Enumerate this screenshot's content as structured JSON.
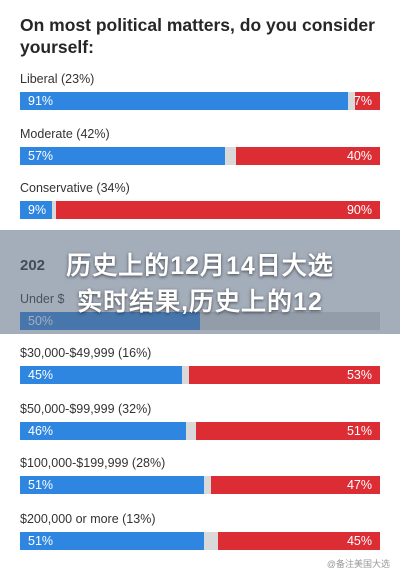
{
  "chart_data": [
    {
      "type": "bar",
      "title": "On most political matters, do you consider yourself:",
      "categories": [
        "Liberal (23%)",
        "Moderate (42%)",
        "Conservative (34%)"
      ],
      "series": [
        {
          "values": [
            91,
            57,
            9
          ],
          "labels": [
            "91%",
            "57%",
            "9%"
          ]
        },
        {
          "values": [
            7,
            40,
            90
          ],
          "labels": [
            "7%",
            "40%",
            "90%"
          ]
        }
      ],
      "colors": [
        "#2f86e0",
        "#dc2d34"
      ],
      "remainder_color": "#d9d9d9"
    },
    {
      "type": "bar",
      "title": "202",
      "categories": [
        "Under $",
        "$30,000-$49,999 (16%)",
        "$50,000-$99,999 (32%)",
        "$100,000-$199,999 (28%)",
        "$200,000 or more (13%)"
      ],
      "series": [
        {
          "values": [
            50,
            45,
            46,
            51,
            51
          ],
          "labels": [
            "50%",
            "45%",
            "46%",
            "51%",
            "51%"
          ]
        },
        {
          "values": [
            null,
            53,
            51,
            47,
            45
          ],
          "labels": [
            "",
            "53%",
            "51%",
            "47%",
            "45%"
          ]
        }
      ],
      "colors": [
        "#2f86e0",
        "#dc2d34"
      ],
      "remainder_color": "#d9d9d9"
    }
  ],
  "overlay": {
    "line1": "历史上的12月14日大选",
    "line2": "实时结果,历史上的12"
  },
  "watermark": "@备注美国大选"
}
